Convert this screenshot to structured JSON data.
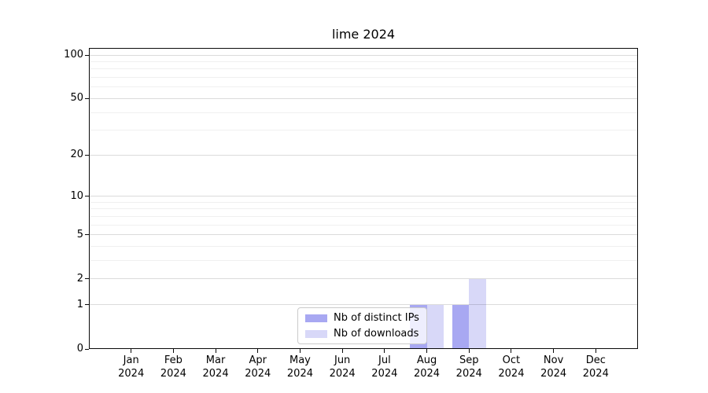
{
  "chart_data": {
    "type": "bar",
    "title": "lime 2024",
    "categories": [
      {
        "top": "Jan",
        "bottom": "2024"
      },
      {
        "top": "Feb",
        "bottom": "2024"
      },
      {
        "top": "Mar",
        "bottom": "2024"
      },
      {
        "top": "Apr",
        "bottom": "2024"
      },
      {
        "top": "May",
        "bottom": "2024"
      },
      {
        "top": "Jun",
        "bottom": "2024"
      },
      {
        "top": "Jul",
        "bottom": "2024"
      },
      {
        "top": "Aug",
        "bottom": "2024"
      },
      {
        "top": "Sep",
        "bottom": "2024"
      },
      {
        "top": "Oct",
        "bottom": "2024"
      },
      {
        "top": "Nov",
        "bottom": "2024"
      },
      {
        "top": "Dec",
        "bottom": "2024"
      }
    ],
    "series": [
      {
        "name": "Nb of distinct IPs",
        "color": "#a8a8f2",
        "values": [
          0,
          0,
          0,
          0,
          0,
          0,
          0,
          1,
          1,
          0,
          0,
          0
        ]
      },
      {
        "name": "Nb of downloads",
        "color": "#d8d8f8",
        "values": [
          0,
          0,
          0,
          0,
          0,
          0,
          0,
          1,
          2,
          0,
          0,
          0
        ]
      }
    ],
    "yscale": "log1p",
    "ylim": [
      0,
      112
    ],
    "yticks": [
      0,
      1,
      2,
      5,
      10,
      20,
      50,
      100
    ],
    "yticks_minor": [
      3,
      4,
      6,
      7,
      8,
      9,
      30,
      40,
      60,
      70,
      80,
      90
    ],
    "grid": {
      "shown": true,
      "major_color": "#dcdcdc",
      "minor_color": "#f0f0f0"
    },
    "legend_position": "inside-lower-center",
    "axis_color": "#0a0a0a",
    "background": "#ffffff"
  }
}
